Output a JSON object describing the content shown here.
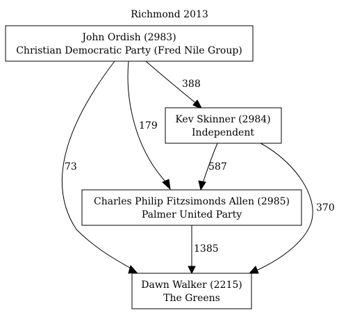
{
  "title": "Richmond 2013",
  "nodes": {
    "ordish": {
      "line1": "John Ordish (2983)",
      "line2": "Christian Democratic Party (Fred Nile Group)"
    },
    "skinner": {
      "line1": "Kev Skinner (2984)",
      "line2": "Independent"
    },
    "allen": {
      "line1": "Charles Philip Fitzsimonds Allen (2985)",
      "line2": "Palmer United Party"
    },
    "walker": {
      "line1": "Dawn Walker (2215)",
      "line2": "The Greens"
    }
  },
  "edges": {
    "ordish_skinner": "388",
    "ordish_allen": "179",
    "ordish_walker": "73",
    "skinner_allen": "587",
    "skinner_walker": "370",
    "allen_walker": "1385"
  }
}
